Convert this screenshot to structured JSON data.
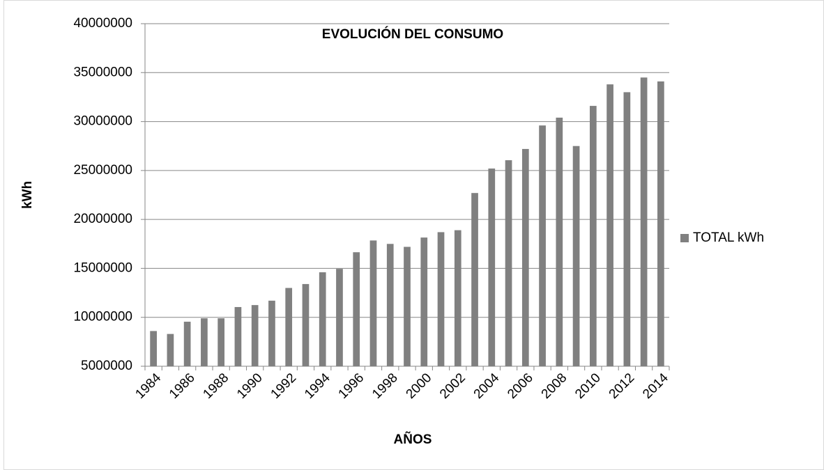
{
  "chart_data": {
    "type": "bar",
    "title": "EVOLUCIÓN DEL CONSUMO",
    "x_label": "AÑOS",
    "y_label": "kWh",
    "categories": [
      "1984",
      null,
      "1986",
      null,
      "1988",
      null,
      "1990",
      null,
      "1992",
      null,
      "1994",
      null,
      "1996",
      null,
      "1998",
      null,
      "2000",
      null,
      "2002",
      null,
      "2004",
      null,
      "2006",
      null,
      "2008",
      null,
      "2010",
      null,
      "2012",
      null,
      "2014"
    ],
    "series": [
      {
        "name": "TOTAL kWh",
        "color": "#808080",
        "values": [
          8600000,
          8300000,
          9550000,
          9900000,
          9900000,
          11050000,
          11250000,
          11700000,
          13000000,
          13400000,
          14600000,
          14950000,
          16650000,
          17850000,
          17500000,
          17200000,
          18150000,
          18700000,
          18900000,
          22700000,
          25200000,
          26050000,
          27200000,
          29600000,
          30400000,
          27500000,
          31600000,
          33800000,
          33000000,
          34500000,
          34100000
        ]
      }
    ],
    "ylim": [
      5000000,
      40000000
    ],
    "yticks": [
      5000000,
      10000000,
      15000000,
      20000000,
      25000000,
      30000000,
      35000000,
      40000000
    ],
    "grid": true,
    "legend": "right"
  }
}
